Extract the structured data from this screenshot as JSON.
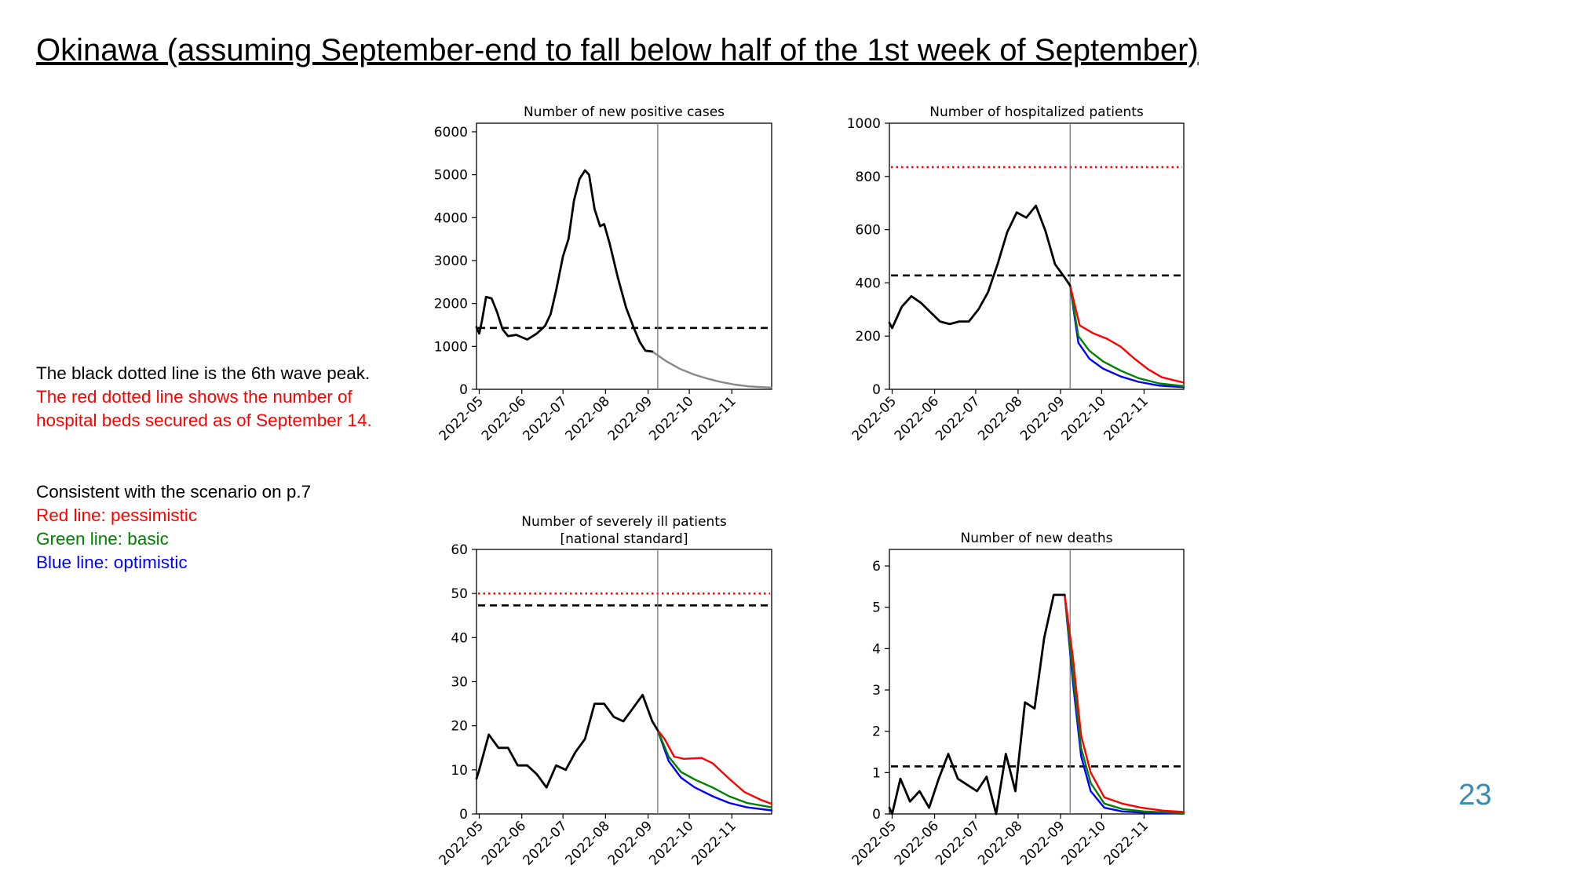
{
  "slide": {
    "title": "Okinawa (assuming September-end to fall below half of the 1st week of September)",
    "page_number": "23"
  },
  "notes": {
    "lines_black": "The black dotted line is the 6th wave peak.",
    "lines_red_1": "The red dotted line shows the number of",
    "lines_red_2": "hospital beds secured as of September 14.",
    "scenario_intro": "Consistent with the scenario on p.7",
    "scenario_red": "Red line: pessimistic",
    "scenario_green": "Green line: basic",
    "scenario_blue": "Blue line: optimistic"
  },
  "colors": {
    "actual": "#000000",
    "pessimistic": "#ff0000",
    "basic": "#008000",
    "optimistic": "#0000ff",
    "projection": "#888888",
    "reference_6th_wave_peak": "#000000",
    "reference_beds_secured": "#ff0000",
    "page_number": "#3a8ab6"
  },
  "chart_data": [
    {
      "id": "cases",
      "type": "line",
      "title": "Number of new positive cases",
      "x_ticks": [
        "2022-05",
        "2022-06",
        "2022-07",
        "2022-08",
        "2022-09",
        "2022-10",
        "2022-11"
      ],
      "xlim": [
        "2022-04-29",
        "2022-11-30"
      ],
      "ylim": [
        0,
        6200
      ],
      "y_ticks": [
        0,
        1000,
        2000,
        3000,
        4000,
        5000,
        6000
      ],
      "vline": "2022-09-08",
      "hlines": [
        {
          "role": "6th-wave-peak",
          "value": 1430
        }
      ],
      "series": [
        {
          "role": "actual",
          "points": [
            [
              "2022-04-29",
              1450
            ],
            [
              "2022-05-01",
              1300
            ],
            [
              "2022-05-03",
              1600
            ],
            [
              "2022-05-06",
              2150
            ],
            [
              "2022-05-10",
              2120
            ],
            [
              "2022-05-14",
              1800
            ],
            [
              "2022-05-18",
              1400
            ],
            [
              "2022-05-22",
              1240
            ],
            [
              "2022-05-28",
              1270
            ],
            [
              "2022-06-05",
              1160
            ],
            [
              "2022-06-12",
              1300
            ],
            [
              "2022-06-18",
              1480
            ],
            [
              "2022-06-22",
              1750
            ],
            [
              "2022-06-26",
              2300
            ],
            [
              "2022-07-01",
              3100
            ],
            [
              "2022-07-05",
              3500
            ],
            [
              "2022-07-09",
              4400
            ],
            [
              "2022-07-13",
              4900
            ],
            [
              "2022-07-17",
              5100
            ],
            [
              "2022-07-20",
              5000
            ],
            [
              "2022-07-24",
              4200
            ],
            [
              "2022-07-28",
              3800
            ],
            [
              "2022-07-31",
              3850
            ],
            [
              "2022-08-04",
              3400
            ],
            [
              "2022-08-10",
              2600
            ],
            [
              "2022-08-16",
              1900
            ],
            [
              "2022-08-22",
              1400
            ],
            [
              "2022-08-26",
              1100
            ],
            [
              "2022-08-30",
              900
            ],
            [
              "2022-09-04",
              880
            ]
          ]
        },
        {
          "role": "projection",
          "points": [
            [
              "2022-09-04",
              880
            ],
            [
              "2022-09-14",
              660
            ],
            [
              "2022-09-24",
              480
            ],
            [
              "2022-10-04",
              350
            ],
            [
              "2022-10-14",
              250
            ],
            [
              "2022-10-24",
              170
            ],
            [
              "2022-11-03",
              110
            ],
            [
              "2022-11-13",
              70
            ],
            [
              "2022-11-20",
              55
            ],
            [
              "2022-11-30",
              40
            ]
          ]
        }
      ]
    },
    {
      "id": "hospitalized",
      "type": "line",
      "title": "Number of hospitalized patients",
      "x_ticks": [
        "2022-05",
        "2022-06",
        "2022-07",
        "2022-08",
        "2022-09",
        "2022-10",
        "2022-11"
      ],
      "xlim": [
        "2022-04-29",
        "2022-11-30"
      ],
      "ylim": [
        0,
        1000
      ],
      "y_ticks": [
        0,
        200,
        400,
        600,
        800,
        1000
      ],
      "vline": "2022-09-08",
      "hlines": [
        {
          "role": "6th-wave-peak",
          "value": 428
        },
        {
          "role": "beds-secured",
          "value": 835
        }
      ],
      "series": [
        {
          "role": "actual",
          "points": [
            [
              "2022-04-29",
              250
            ],
            [
              "2022-05-01",
              230
            ],
            [
              "2022-05-08",
              310
            ],
            [
              "2022-05-15",
              350
            ],
            [
              "2022-05-22",
              325
            ],
            [
              "2022-05-29",
              290
            ],
            [
              "2022-06-05",
              255
            ],
            [
              "2022-06-12",
              245
            ],
            [
              "2022-06-19",
              255
            ],
            [
              "2022-06-26",
              255
            ],
            [
              "2022-07-03",
              300
            ],
            [
              "2022-07-10",
              365
            ],
            [
              "2022-07-17",
              470
            ],
            [
              "2022-07-24",
              590
            ],
            [
              "2022-07-31",
              665
            ],
            [
              "2022-08-07",
              645
            ],
            [
              "2022-08-14",
              690
            ],
            [
              "2022-08-21",
              595
            ],
            [
              "2022-08-28",
              470
            ],
            [
              "2022-09-04",
              420
            ],
            [
              "2022-09-08",
              390
            ]
          ]
        },
        {
          "role": "pessimistic",
          "points": [
            [
              "2022-09-08",
              390
            ],
            [
              "2022-09-15",
              240
            ],
            [
              "2022-09-25",
              210
            ],
            [
              "2022-10-05",
              190
            ],
            [
              "2022-10-15",
              160
            ],
            [
              "2022-10-25",
              115
            ],
            [
              "2022-11-04",
              75
            ],
            [
              "2022-11-14",
              45
            ],
            [
              "2022-11-30",
              25
            ]
          ]
        },
        {
          "role": "basic",
          "points": [
            [
              "2022-09-08",
              390
            ],
            [
              "2022-09-14",
              200
            ],
            [
              "2022-09-22",
              145
            ],
            [
              "2022-10-02",
              105
            ],
            [
              "2022-10-15",
              70
            ],
            [
              "2022-10-28",
              42
            ],
            [
              "2022-11-12",
              22
            ],
            [
              "2022-11-30",
              12
            ]
          ]
        },
        {
          "role": "optimistic",
          "points": [
            [
              "2022-09-08",
              390
            ],
            [
              "2022-09-14",
              175
            ],
            [
              "2022-09-22",
              115
            ],
            [
              "2022-10-02",
              78
            ],
            [
              "2022-10-15",
              48
            ],
            [
              "2022-10-28",
              28
            ],
            [
              "2022-11-12",
              14
            ],
            [
              "2022-11-30",
              8
            ]
          ]
        }
      ]
    },
    {
      "id": "severe",
      "type": "line",
      "title": "Number of severely ill patients",
      "subtitle": "[national standard]",
      "x_ticks": [
        "2022-05",
        "2022-06",
        "2022-07",
        "2022-08",
        "2022-09",
        "2022-10",
        "2022-11"
      ],
      "xlim": [
        "2022-04-29",
        "2022-11-30"
      ],
      "ylim": [
        0,
        60
      ],
      "y_ticks": [
        0,
        10,
        20,
        30,
        40,
        50,
        60
      ],
      "vline": "2022-09-08",
      "hlines": [
        {
          "role": "6th-wave-peak",
          "value": 47.3
        },
        {
          "role": "beds-secured",
          "value": 50
        }
      ],
      "series": [
        {
          "role": "actual",
          "points": [
            [
              "2022-04-29",
              8
            ],
            [
              "2022-05-01",
              10
            ],
            [
              "2022-05-08",
              18
            ],
            [
              "2022-05-15",
              15
            ],
            [
              "2022-05-22",
              15
            ],
            [
              "2022-05-29",
              11
            ],
            [
              "2022-06-05",
              11
            ],
            [
              "2022-06-12",
              9
            ],
            [
              "2022-06-19",
              6
            ],
            [
              "2022-06-26",
              11
            ],
            [
              "2022-07-03",
              10
            ],
            [
              "2022-07-10",
              14
            ],
            [
              "2022-07-17",
              17
            ],
            [
              "2022-07-24",
              25
            ],
            [
              "2022-07-31",
              25
            ],
            [
              "2022-08-07",
              22
            ],
            [
              "2022-08-14",
              21
            ],
            [
              "2022-08-21",
              24
            ],
            [
              "2022-08-28",
              27
            ],
            [
              "2022-09-04",
              21
            ],
            [
              "2022-09-08",
              19
            ]
          ]
        },
        {
          "role": "pessimistic",
          "points": [
            [
              "2022-09-08",
              19
            ],
            [
              "2022-09-13",
              17
            ],
            [
              "2022-09-20",
              13
            ],
            [
              "2022-09-27",
              12.5
            ],
            [
              "2022-10-10",
              12.7
            ],
            [
              "2022-10-18",
              11.5
            ],
            [
              "2022-10-30",
              8
            ],
            [
              "2022-11-10",
              5
            ],
            [
              "2022-11-22",
              3.2
            ],
            [
              "2022-11-30",
              2.3
            ]
          ]
        },
        {
          "role": "basic",
          "points": [
            [
              "2022-09-08",
              19
            ],
            [
              "2022-09-16",
              13
            ],
            [
              "2022-09-25",
              9.5
            ],
            [
              "2022-10-05",
              7.8
            ],
            [
              "2022-10-18",
              6
            ],
            [
              "2022-10-30",
              4
            ],
            [
              "2022-11-12",
              2.5
            ],
            [
              "2022-11-30",
              1.5
            ]
          ]
        },
        {
          "role": "optimistic",
          "points": [
            [
              "2022-09-08",
              19
            ],
            [
              "2022-09-16",
              12
            ],
            [
              "2022-09-25",
              8.2
            ],
            [
              "2022-10-05",
              6
            ],
            [
              "2022-10-18",
              4
            ],
            [
              "2022-10-30",
              2.5
            ],
            [
              "2022-11-12",
              1.5
            ],
            [
              "2022-11-30",
              0.8
            ]
          ]
        }
      ]
    },
    {
      "id": "deaths",
      "type": "line",
      "title": "Number of new deaths",
      "x_ticks": [
        "2022-05",
        "2022-06",
        "2022-07",
        "2022-08",
        "2022-09",
        "2022-10",
        "2022-11"
      ],
      "xlim": [
        "2022-04-29",
        "2022-11-30"
      ],
      "ylim": [
        0,
        6.4
      ],
      "y_ticks": [
        0,
        1,
        2,
        3,
        4,
        5,
        6
      ],
      "vline": "2022-09-08",
      "hlines": [
        {
          "role": "6th-wave-peak",
          "value": 1.15
        }
      ],
      "series": [
        {
          "role": "actual",
          "points": [
            [
              "2022-04-29",
              0.15
            ],
            [
              "2022-05-01",
              0
            ],
            [
              "2022-05-07",
              0.85
            ],
            [
              "2022-05-14",
              0.3
            ],
            [
              "2022-05-21",
              0.55
            ],
            [
              "2022-05-28",
              0.15
            ],
            [
              "2022-06-04",
              0.85
            ],
            [
              "2022-06-11",
              1.45
            ],
            [
              "2022-06-18",
              0.85
            ],
            [
              "2022-06-25",
              0.7
            ],
            [
              "2022-07-02",
              0.55
            ],
            [
              "2022-07-09",
              0.9
            ],
            [
              "2022-07-16",
              0
            ],
            [
              "2022-07-23",
              1.45
            ],
            [
              "2022-07-30",
              0.55
            ],
            [
              "2022-08-06",
              2.7
            ],
            [
              "2022-08-13",
              2.55
            ],
            [
              "2022-08-20",
              4.25
            ],
            [
              "2022-08-27",
              5.3
            ],
            [
              "2022-09-04",
              5.3
            ]
          ]
        },
        {
          "role": "pessimistic",
          "points": [
            [
              "2022-09-04",
              5.3
            ],
            [
              "2022-09-10",
              3.8
            ],
            [
              "2022-09-16",
              1.9
            ],
            [
              "2022-09-23",
              1.0
            ],
            [
              "2022-10-03",
              0.4
            ],
            [
              "2022-10-16",
              0.25
            ],
            [
              "2022-10-30",
              0.15
            ],
            [
              "2022-11-15",
              0.08
            ],
            [
              "2022-11-30",
              0.05
            ]
          ]
        },
        {
          "role": "basic",
          "points": [
            [
              "2022-09-04",
              5.3
            ],
            [
              "2022-09-10",
              3.4
            ],
            [
              "2022-09-16",
              1.6
            ],
            [
              "2022-09-23",
              0.75
            ],
            [
              "2022-10-03",
              0.25
            ],
            [
              "2022-10-16",
              0.12
            ],
            [
              "2022-11-01",
              0.06
            ],
            [
              "2022-11-30",
              0.02
            ]
          ]
        },
        {
          "role": "optimistic",
          "points": [
            [
              "2022-09-04",
              5.3
            ],
            [
              "2022-09-10",
              3.2
            ],
            [
              "2022-09-16",
              1.4
            ],
            [
              "2022-09-23",
              0.55
            ],
            [
              "2022-10-03",
              0.15
            ],
            [
              "2022-10-16",
              0.06
            ],
            [
              "2022-11-01",
              0.03
            ],
            [
              "2022-11-30",
              0.01
            ]
          ]
        }
      ]
    }
  ]
}
